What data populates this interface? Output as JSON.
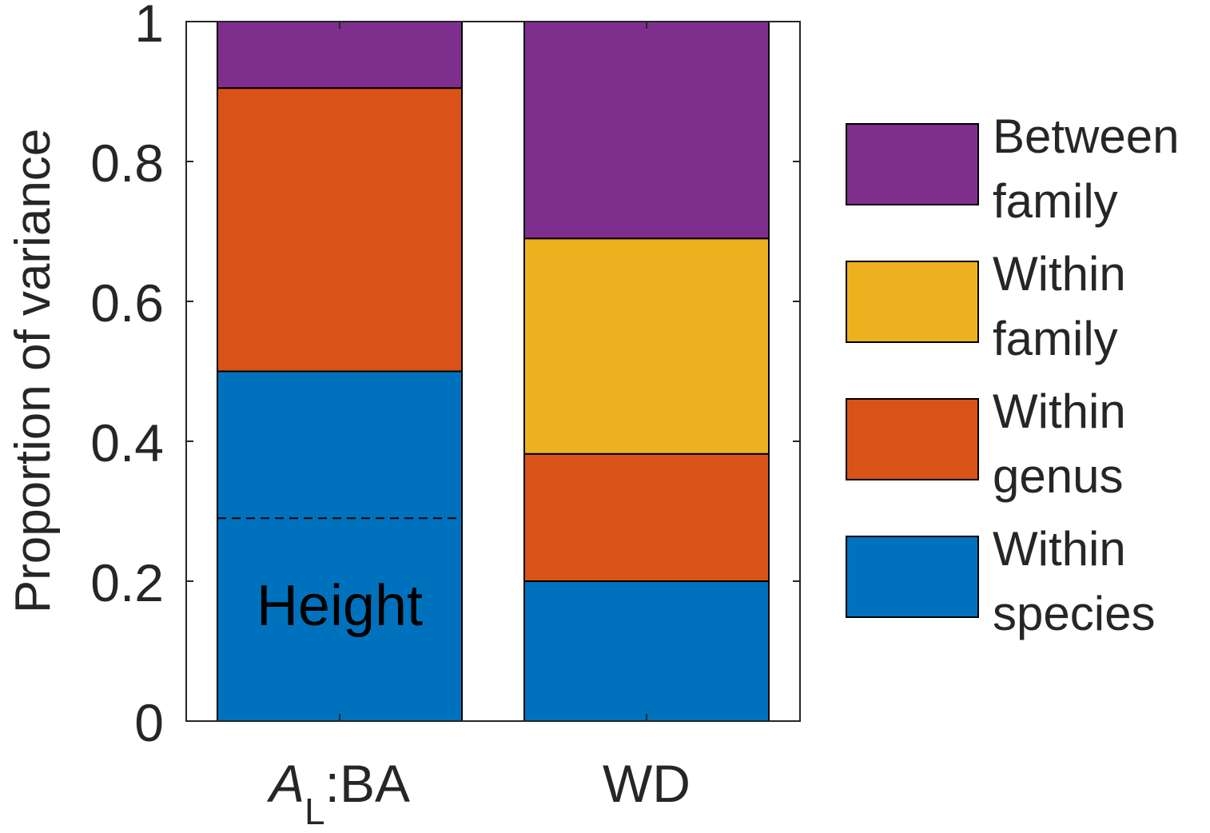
{
  "chart_data": {
    "type": "bar",
    "stacked": true,
    "categories": [
      {
        "italic": "A",
        "sub": "L",
        "rest": ":BA"
      },
      {
        "italic": "",
        "sub": "",
        "rest": "WD"
      }
    ],
    "series": [
      {
        "name": "Within species",
        "color": "#0072bd",
        "values": [
          0.5,
          0.2
        ]
      },
      {
        "name": "Within genus",
        "color": "#d95319",
        "values": [
          0.405,
          0.182
        ]
      },
      {
        "name": "Within family",
        "color": "#edb120",
        "values": [
          0.0,
          0.308
        ]
      },
      {
        "name": "Between family",
        "color": "#7e2f8e",
        "values": [
          0.095,
          0.31
        ]
      }
    ],
    "legend": [
      {
        "line1": "Between",
        "line2": "family",
        "color": "#7e2f8e"
      },
      {
        "line1": "Within",
        "line2": "family",
        "color": "#edb120"
      },
      {
        "line1": "Within",
        "line2": "genus",
        "color": "#d95319"
      },
      {
        "line1": "Within",
        "line2": "species",
        "color": "#0072bd"
      }
    ],
    "legend_position": "right",
    "annotation": {
      "text": "Height",
      "category_index": 0,
      "divider_value": 0.29,
      "label_value": 0.16
    },
    "ylabel": "Proportion of variance",
    "xlabel": "",
    "ylim": [
      0,
      1
    ],
    "yticks": [
      0,
      0.2,
      0.4,
      0.6,
      0.8,
      1
    ],
    "ytick_labels": [
      "0",
      "0.2",
      "0.4",
      "0.6",
      "0.8",
      "1"
    ],
    "grid": false
  }
}
